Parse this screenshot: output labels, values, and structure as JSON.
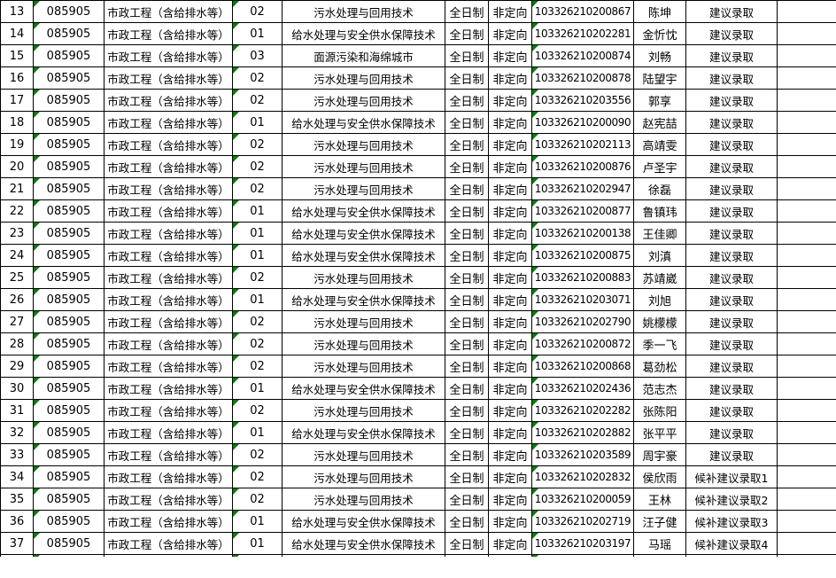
{
  "colors": {
    "background": "#ffffff",
    "grid_border": "#000000",
    "error_indicator_green": "#008000",
    "text": "#000000"
  },
  "table": {
    "columns": [
      "row-index",
      "program-code",
      "major-name",
      "direction-code",
      "direction-name",
      "study-mode",
      "orientation-type",
      "exam-number",
      "candidate-name",
      "admission-status",
      "remark"
    ],
    "error_indicator_columns": [
      "program-code",
      "direction-code",
      "exam-number"
    ],
    "rows": [
      {
        "no": "13",
        "code": "085905",
        "major": "市政工程（含给排水等）",
        "dir_no": "02",
        "dir_name": "污水处理与回用技术",
        "mode": "全日制",
        "orient": "非定向",
        "exam_no": "103326210200867",
        "name": "陈坤",
        "status": "建议录取",
        "remark": ""
      },
      {
        "no": "14",
        "code": "085905",
        "major": "市政工程（含给排水等）",
        "dir_no": "01",
        "dir_name": "给水处理与安全供水保障技术",
        "mode": "全日制",
        "orient": "非定向",
        "exam_no": "103326210202281",
        "name": "金忻忱",
        "status": "建议录取",
        "remark": ""
      },
      {
        "no": "15",
        "code": "085905",
        "major": "市政工程（含给排水等）",
        "dir_no": "03",
        "dir_name": "面源污染和海绵城市",
        "mode": "全日制",
        "orient": "非定向",
        "exam_no": "103326210200874",
        "name": "刘畅",
        "status": "建议录取",
        "remark": ""
      },
      {
        "no": "16",
        "code": "085905",
        "major": "市政工程（含给排水等）",
        "dir_no": "02",
        "dir_name": "污水处理与回用技术",
        "mode": "全日制",
        "orient": "非定向",
        "exam_no": "103326210200878",
        "name": "陆望宇",
        "status": "建议录取",
        "remark": ""
      },
      {
        "no": "17",
        "code": "085905",
        "major": "市政工程（含给排水等）",
        "dir_no": "02",
        "dir_name": "污水处理与回用技术",
        "mode": "全日制",
        "orient": "非定向",
        "exam_no": "103326210203556",
        "name": "郭享",
        "status": "建议录取",
        "remark": ""
      },
      {
        "no": "18",
        "code": "085905",
        "major": "市政工程（含给排水等）",
        "dir_no": "01",
        "dir_name": "给水处理与安全供水保障技术",
        "mode": "全日制",
        "orient": "非定向",
        "exam_no": "103326210200090",
        "name": "赵宪喆",
        "status": "建议录取",
        "remark": ""
      },
      {
        "no": "19",
        "code": "085905",
        "major": "市政工程（含给排水等）",
        "dir_no": "02",
        "dir_name": "污水处理与回用技术",
        "mode": "全日制",
        "orient": "非定向",
        "exam_no": "103326210202113",
        "name": "高靖雯",
        "status": "建议录取",
        "remark": ""
      },
      {
        "no": "20",
        "code": "085905",
        "major": "市政工程（含给排水等）",
        "dir_no": "02",
        "dir_name": "污水处理与回用技术",
        "mode": "全日制",
        "orient": "非定向",
        "exam_no": "103326210200876",
        "name": "卢圣宇",
        "status": "建议录取",
        "remark": ""
      },
      {
        "no": "21",
        "code": "085905",
        "major": "市政工程（含给排水等）",
        "dir_no": "02",
        "dir_name": "污水处理与回用技术",
        "mode": "全日制",
        "orient": "非定向",
        "exam_no": "103326210202947",
        "name": "徐磊",
        "status": "建议录取",
        "remark": ""
      },
      {
        "no": "22",
        "code": "085905",
        "major": "市政工程（含给排水等）",
        "dir_no": "01",
        "dir_name": "给水处理与安全供水保障技术",
        "mode": "全日制",
        "orient": "非定向",
        "exam_no": "103326210200877",
        "name": "鲁镇玮",
        "status": "建议录取",
        "remark": ""
      },
      {
        "no": "23",
        "code": "085905",
        "major": "市政工程（含给排水等）",
        "dir_no": "01",
        "dir_name": "给水处理与安全供水保障技术",
        "mode": "全日制",
        "orient": "非定向",
        "exam_no": "103326210200138",
        "name": "王佳卿",
        "status": "建议录取",
        "remark": ""
      },
      {
        "no": "24",
        "code": "085905",
        "major": "市政工程（含给排水等）",
        "dir_no": "01",
        "dir_name": "给水处理与安全供水保障技术",
        "mode": "全日制",
        "orient": "非定向",
        "exam_no": "103326210200875",
        "name": "刘滇",
        "status": "建议录取",
        "remark": ""
      },
      {
        "no": "25",
        "code": "085905",
        "major": "市政工程（含给排水等）",
        "dir_no": "02",
        "dir_name": "污水处理与回用技术",
        "mode": "全日制",
        "orient": "非定向",
        "exam_no": "103326210200883",
        "name": "苏靖崴",
        "status": "建议录取",
        "remark": ""
      },
      {
        "no": "26",
        "code": "085905",
        "major": "市政工程（含给排水等）",
        "dir_no": "01",
        "dir_name": "给水处理与安全供水保障技术",
        "mode": "全日制",
        "orient": "非定向",
        "exam_no": "103326210203071",
        "name": "刘旭",
        "status": "建议录取",
        "remark": ""
      },
      {
        "no": "27",
        "code": "085905",
        "major": "市政工程（含给排水等）",
        "dir_no": "02",
        "dir_name": "污水处理与回用技术",
        "mode": "全日制",
        "orient": "非定向",
        "exam_no": "103326210202790",
        "name": "姚檬檬",
        "status": "建议录取",
        "remark": ""
      },
      {
        "no": "28",
        "code": "085905",
        "major": "市政工程（含给排水等）",
        "dir_no": "02",
        "dir_name": "污水处理与回用技术",
        "mode": "全日制",
        "orient": "非定向",
        "exam_no": "103326210200872",
        "name": "季一飞",
        "status": "建议录取",
        "remark": ""
      },
      {
        "no": "29",
        "code": "085905",
        "major": "市政工程（含给排水等）",
        "dir_no": "02",
        "dir_name": "污水处理与回用技术",
        "mode": "全日制",
        "orient": "非定向",
        "exam_no": "103326210200868",
        "name": "葛劲松",
        "status": "建议录取",
        "remark": ""
      },
      {
        "no": "30",
        "code": "085905",
        "major": "市政工程（含给排水等）",
        "dir_no": "01",
        "dir_name": "给水处理与安全供水保障技术",
        "mode": "全日制",
        "orient": "非定向",
        "exam_no": "103326210202436",
        "name": "范志杰",
        "status": "建议录取",
        "remark": ""
      },
      {
        "no": "31",
        "code": "085905",
        "major": "市政工程（含给排水等）",
        "dir_no": "02",
        "dir_name": "污水处理与回用技术",
        "mode": "全日制",
        "orient": "非定向",
        "exam_no": "103326210202282",
        "name": "张陈阳",
        "status": "建议录取",
        "remark": ""
      },
      {
        "no": "32",
        "code": "085905",
        "major": "市政工程（含给排水等）",
        "dir_no": "01",
        "dir_name": "给水处理与安全供水保障技术",
        "mode": "全日制",
        "orient": "非定向",
        "exam_no": "103326210202882",
        "name": "张平平",
        "status": "建议录取",
        "remark": ""
      },
      {
        "no": "33",
        "code": "085905",
        "major": "市政工程（含给排水等）",
        "dir_no": "02",
        "dir_name": "污水处理与回用技术",
        "mode": "全日制",
        "orient": "非定向",
        "exam_no": "103326210203589",
        "name": "周宇豪",
        "status": "建议录取",
        "remark": ""
      },
      {
        "no": "34",
        "code": "085905",
        "major": "市政工程（含给排水等）",
        "dir_no": "02",
        "dir_name": "污水处理与回用技术",
        "mode": "全日制",
        "orient": "非定向",
        "exam_no": "103326210202832",
        "name": "侯欣雨",
        "status": "候补建议录取1",
        "remark": ""
      },
      {
        "no": "35",
        "code": "085905",
        "major": "市政工程（含给排水等）",
        "dir_no": "02",
        "dir_name": "污水处理与回用技术",
        "mode": "全日制",
        "orient": "非定向",
        "exam_no": "103326210200059",
        "name": "王林",
        "status": "候补建议录取2",
        "remark": ""
      },
      {
        "no": "36",
        "code": "085905",
        "major": "市政工程（含给排水等）",
        "dir_no": "01",
        "dir_name": "给水处理与安全供水保障技术",
        "mode": "全日制",
        "orient": "非定向",
        "exam_no": "103326210202719",
        "name": "汪子健",
        "status": "候补建议录取3",
        "remark": ""
      },
      {
        "no": "37",
        "code": "085905",
        "major": "市政工程（含给排水等）",
        "dir_no": "01",
        "dir_name": "给水处理与安全供水保障技术",
        "mode": "全日制",
        "orient": "非定向",
        "exam_no": "103326210203197",
        "name": "马瑶",
        "status": "候补建议录取4",
        "remark": ""
      }
    ]
  }
}
